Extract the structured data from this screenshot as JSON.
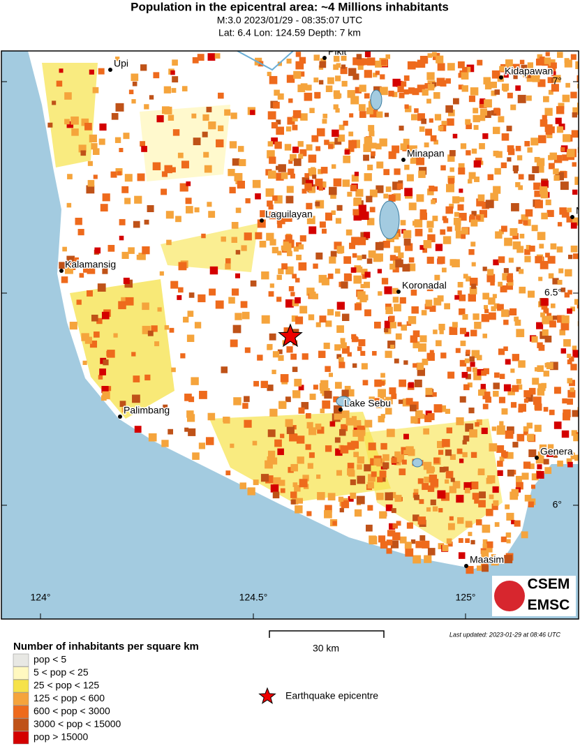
{
  "header": {
    "title": "Population in the epicentral area: ~4 Millions inhabitants",
    "subtitle_lines": [
      "M:3.0 2023/01/29 - 08:35:07 UTC",
      "Lat: 6.4 Lon: 124.59 Depth: 7 km"
    ]
  },
  "map": {
    "cities": [
      "Upi",
      "Pikit",
      "Kidapawan",
      "Minapan",
      "Laguilayan",
      "Kalamansig",
      "Koronadal",
      "Lake Sebu",
      "Palimbang",
      "Genera",
      "Maasim",
      "M"
    ],
    "lon_ticks": [
      "124°",
      "124.5°",
      "125°"
    ],
    "lat_ticks": [
      "7°",
      "6.5°",
      "6°"
    ],
    "scale_bar": "30 km",
    "last_updated": "Last updated: 2023-01-29 at 08:46 UTC",
    "logo": [
      "CSEM",
      "EMSC"
    ]
  },
  "legend": {
    "title": "Number of inhabitants per square km",
    "items": [
      {
        "label": "pop < 5",
        "color": "#e8e8e4"
      },
      {
        "label": "5 < pop < 25",
        "color": "#fff8c0"
      },
      {
        "label": "25 < pop < 125",
        "color": "#f6e24a"
      },
      {
        "label": "125 < pop < 600",
        "color": "#f5a43c"
      },
      {
        "label": "600 < pop < 3000",
        "color": "#ee6a1c"
      },
      {
        "label": "3000 < pop < 15000",
        "color": "#bf5218"
      },
      {
        "label": "pop > 15000",
        "color": "#d40000"
      }
    ],
    "epicentre": "Earthquake epicentre"
  }
}
